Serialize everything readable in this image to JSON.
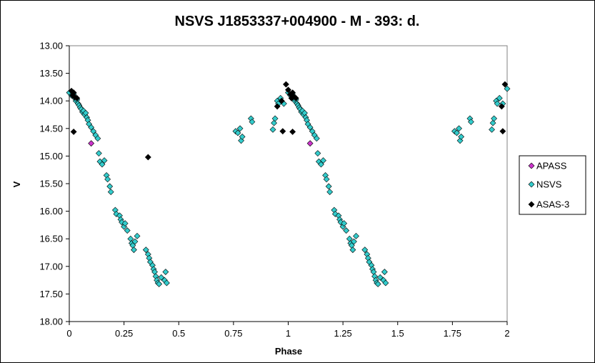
{
  "chart_data": {
    "type": "scatter",
    "title": "NSVS J1853337+004900  - M - 393: d.",
    "xlabel": "Phase",
    "ylabel": "V",
    "xlim": [
      0,
      2
    ],
    "ylim": [
      13.0,
      18.0
    ],
    "y_inverted": true,
    "x_ticks": [
      "0",
      "0.25",
      "0.5",
      "0.75",
      "1",
      "1.25",
      "1.5",
      "1.75",
      "2"
    ],
    "y_ticks": [
      "13.00",
      "13.50",
      "14.00",
      "14.50",
      "15.00",
      "15.50",
      "16.00",
      "16.50",
      "17.00",
      "17.50",
      "18.00"
    ],
    "grid": false,
    "legend_position": "right",
    "series": [
      {
        "name": "APASS",
        "color": "#cc33cc",
        "marker": "diamond",
        "points": [
          [
            0.1,
            14.77
          ],
          [
            1.1,
            14.77
          ]
        ]
      },
      {
        "name": "NSVS",
        "color": "#33cccc",
        "marker": "diamond",
        "points": [
          [
            0.0,
            13.85
          ],
          [
            0.01,
            13.9
          ],
          [
            0.02,
            13.88
          ],
          [
            0.025,
            13.95
          ],
          [
            0.03,
            14.0
          ],
          [
            0.035,
            13.98
          ],
          [
            0.04,
            14.05
          ],
          [
            0.045,
            14.08
          ],
          [
            0.05,
            14.12
          ],
          [
            0.055,
            14.15
          ],
          [
            0.06,
            14.2
          ],
          [
            0.065,
            14.18
          ],
          [
            0.07,
            14.25
          ],
          [
            0.075,
            14.22
          ],
          [
            0.08,
            14.3
          ],
          [
            0.085,
            14.35
          ],
          [
            0.09,
            14.42
          ],
          [
            0.1,
            14.48
          ],
          [
            0.11,
            14.55
          ],
          [
            0.12,
            14.62
          ],
          [
            0.13,
            14.68
          ],
          [
            0.135,
            14.95
          ],
          [
            0.14,
            15.1
          ],
          [
            0.15,
            15.15
          ],
          [
            0.16,
            15.08
          ],
          [
            0.17,
            15.35
          ],
          [
            0.175,
            15.42
          ],
          [
            0.185,
            15.55
          ],
          [
            0.19,
            15.65
          ],
          [
            0.21,
            15.98
          ],
          [
            0.215,
            16.05
          ],
          [
            0.23,
            16.08
          ],
          [
            0.235,
            16.15
          ],
          [
            0.24,
            16.2
          ],
          [
            0.25,
            16.28
          ],
          [
            0.255,
            16.22
          ],
          [
            0.265,
            16.35
          ],
          [
            0.28,
            16.5
          ],
          [
            0.285,
            16.58
          ],
          [
            0.29,
            16.62
          ],
          [
            0.295,
            16.7
          ],
          [
            0.3,
            16.55
          ],
          [
            0.31,
            16.45
          ],
          [
            0.35,
            16.7
          ],
          [
            0.36,
            16.78
          ],
          [
            0.365,
            16.85
          ],
          [
            0.37,
            16.92
          ],
          [
            0.38,
            16.98
          ],
          [
            0.385,
            17.05
          ],
          [
            0.39,
            17.1
          ],
          [
            0.395,
            17.18
          ],
          [
            0.4,
            17.25
          ],
          [
            0.405,
            17.3
          ],
          [
            0.41,
            17.32
          ],
          [
            0.42,
            17.2
          ],
          [
            0.435,
            17.25
          ],
          [
            0.44,
            17.1
          ],
          [
            0.445,
            17.3
          ],
          [
            0.76,
            14.55
          ],
          [
            0.77,
            14.58
          ],
          [
            0.78,
            14.5
          ],
          [
            0.785,
            14.72
          ],
          [
            0.79,
            14.65
          ],
          [
            0.83,
            14.32
          ],
          [
            0.835,
            14.38
          ],
          [
            0.93,
            14.52
          ],
          [
            0.935,
            14.4
          ],
          [
            0.94,
            14.32
          ],
          [
            0.95,
            14.0
          ],
          [
            0.955,
            14.05
          ],
          [
            0.965,
            13.95
          ],
          [
            0.98,
            14.05
          ],
          [
            1.0,
            13.85
          ],
          [
            1.01,
            13.9
          ],
          [
            1.02,
            13.88
          ],
          [
            1.025,
            13.95
          ],
          [
            1.03,
            14.0
          ],
          [
            1.035,
            13.98
          ],
          [
            1.04,
            14.05
          ],
          [
            1.045,
            14.08
          ],
          [
            1.05,
            14.12
          ],
          [
            1.055,
            14.15
          ],
          [
            1.06,
            14.2
          ],
          [
            1.065,
            14.18
          ],
          [
            1.07,
            14.25
          ],
          [
            1.075,
            14.22
          ],
          [
            1.08,
            14.3
          ],
          [
            1.085,
            14.35
          ],
          [
            1.09,
            14.42
          ],
          [
            1.1,
            14.48
          ],
          [
            1.11,
            14.55
          ],
          [
            1.12,
            14.62
          ],
          [
            1.13,
            14.68
          ],
          [
            1.135,
            14.95
          ],
          [
            1.14,
            15.1
          ],
          [
            1.15,
            15.15
          ],
          [
            1.16,
            15.08
          ],
          [
            1.17,
            15.35
          ],
          [
            1.175,
            15.42
          ],
          [
            1.185,
            15.55
          ],
          [
            1.19,
            15.65
          ],
          [
            1.21,
            15.98
          ],
          [
            1.215,
            16.05
          ],
          [
            1.23,
            16.08
          ],
          [
            1.235,
            16.15
          ],
          [
            1.24,
            16.2
          ],
          [
            1.25,
            16.28
          ],
          [
            1.255,
            16.22
          ],
          [
            1.265,
            16.35
          ],
          [
            1.28,
            16.5
          ],
          [
            1.285,
            16.58
          ],
          [
            1.29,
            16.62
          ],
          [
            1.295,
            16.7
          ],
          [
            1.3,
            16.55
          ],
          [
            1.31,
            16.45
          ],
          [
            1.35,
            16.7
          ],
          [
            1.36,
            16.78
          ],
          [
            1.365,
            16.85
          ],
          [
            1.37,
            16.92
          ],
          [
            1.38,
            16.98
          ],
          [
            1.385,
            17.05
          ],
          [
            1.39,
            17.1
          ],
          [
            1.395,
            17.18
          ],
          [
            1.4,
            17.25
          ],
          [
            1.405,
            17.3
          ],
          [
            1.41,
            17.32
          ],
          [
            1.42,
            17.2
          ],
          [
            1.435,
            17.25
          ],
          [
            1.44,
            17.1
          ],
          [
            1.445,
            17.3
          ],
          [
            1.76,
            14.55
          ],
          [
            1.77,
            14.58
          ],
          [
            1.78,
            14.5
          ],
          [
            1.785,
            14.72
          ],
          [
            1.79,
            14.65
          ],
          [
            1.83,
            14.32
          ],
          [
            1.835,
            14.38
          ],
          [
            1.93,
            14.52
          ],
          [
            1.935,
            14.4
          ],
          [
            1.94,
            14.32
          ],
          [
            1.95,
            14.0
          ],
          [
            1.955,
            14.05
          ],
          [
            1.965,
            13.95
          ],
          [
            1.98,
            14.05
          ],
          [
            2.0,
            13.78
          ]
        ]
      },
      {
        "name": "ASAS-3",
        "color": "#000000",
        "marker": "diamond",
        "points": [
          [
            0.01,
            13.82
          ],
          [
            0.015,
            13.9
          ],
          [
            0.02,
            13.85
          ],
          [
            0.025,
            13.93
          ],
          [
            0.035,
            13.95
          ],
          [
            0.02,
            14.56
          ],
          [
            0.36,
            15.02
          ],
          [
            0.95,
            14.1
          ],
          [
            0.97,
            14.0
          ],
          [
            0.975,
            14.55
          ],
          [
            0.99,
            13.7
          ],
          [
            1.0,
            13.8
          ],
          [
            1.01,
            13.88
          ],
          [
            1.015,
            13.95
          ],
          [
            1.02,
            13.85
          ],
          [
            1.025,
            13.92
          ],
          [
            1.035,
            13.95
          ],
          [
            1.02,
            14.56
          ],
          [
            1.975,
            14.1
          ],
          [
            1.99,
            13.7
          ],
          [
            1.98,
            14.55
          ]
        ]
      }
    ]
  }
}
